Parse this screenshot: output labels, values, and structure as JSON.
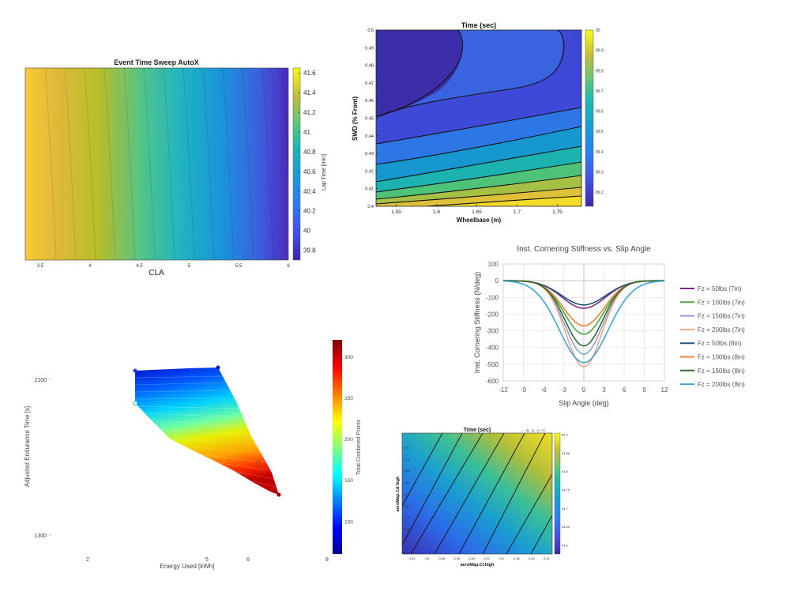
{
  "chart_data": [
    {
      "type": "heatmap",
      "title": "Event Time Sweep AutoX",
      "xlabel": "CLA",
      "ylabel": "",
      "colorbar_label": "Lap Time [min]",
      "x_ticks": [
        "3.5",
        "4",
        "4.5",
        "5",
        "5.5",
        "6"
      ],
      "xlim": [
        3.35,
        6
      ],
      "colorbar_ticks": [
        "39.8",
        "40",
        "40.2",
        "40.4",
        "40.6",
        "40.8",
        "41",
        "41.2",
        "41.4",
        "41.6"
      ],
      "clim": [
        39.7,
        41.65
      ],
      "colormap": "parula",
      "values_at_x": [
        {
          "x": 3.35,
          "value": 41.6
        },
        {
          "x": 3.5,
          "value": 41.45
        },
        {
          "x": 4,
          "value": 41.05
        },
        {
          "x": 4.5,
          "value": 40.7
        },
        {
          "x": 5,
          "value": 40.35
        },
        {
          "x": 5.5,
          "value": 40.05
        },
        {
          "x": 6,
          "value": 39.75
        }
      ]
    },
    {
      "type": "heatmap",
      "title": "Time (sec)",
      "xlabel": "Wheelbase (m)",
      "ylabel": "SWD (% Front)",
      "x_ticks": [
        "1.55",
        "1.6",
        "1.65",
        "1.7",
        "1.75"
      ],
      "xlim": [
        1.525,
        1.78
      ],
      "y_ticks": [
        "0.4",
        "0.41",
        "0.42",
        "0.43",
        "0.44",
        "0.45",
        "0.46",
        "0.47",
        "0.48",
        "0.49",
        "0.5"
      ],
      "ylim": [
        0.4,
        0.5
      ],
      "colorbar_ticks": [
        "89.2",
        "89.3",
        "89.4",
        "89.5",
        "89.6",
        "89.7",
        "89.8",
        "89.9",
        "90"
      ],
      "clim": [
        89.13,
        90.0
      ],
      "colormap": "parula"
    },
    {
      "type": "line",
      "title": "Inst. Cornering Stiffness vs. Slip Angle",
      "xlabel": "Slip Angle (deg)",
      "ylabel": "Inst. Cornering Stiffness (N/deg)",
      "x_ticks": [
        "-12",
        "-9",
        "-6",
        "-3",
        "0",
        "3",
        "6",
        "9",
        "12"
      ],
      "xlim": [
        -12,
        12
      ],
      "y_ticks": [
        "100",
        "0",
        "-100",
        "-200",
        "-300",
        "-400",
        "-500",
        "-600"
      ],
      "ylim": [
        -600,
        100
      ],
      "grid": true,
      "legend_position": "right",
      "series": [
        {
          "name": "Fz = 50lbs (7in)",
          "color": "#7b2a8c",
          "peak": -165,
          "width": 3.2
        },
        {
          "name": "Fz = 100lbs (7in)",
          "color": "#4aa83f",
          "peak": -320,
          "width": 2.9
        },
        {
          "name": "Fz = 150lbs (7in)",
          "color": "#8ea6cf",
          "peak": -440,
          "width": 2.8
        },
        {
          "name": "Fz = 200lbs (7in)",
          "color": "#f4a582",
          "peak": -515,
          "width": 2.7
        },
        {
          "name": "Fz = 50lbs (8in)",
          "color": "#24527a",
          "peak": -145,
          "width": 3.3
        },
        {
          "name": "Fz = 100lbs (8in)",
          "color": "#f08030",
          "peak": -270,
          "width": 3.0
        },
        {
          "name": "Fz = 150lbs (8in)",
          "color": "#2e6b2e",
          "peak": -390,
          "width": 2.8
        },
        {
          "name": "Fz = 200lbs (8in)",
          "color": "#3aa6d6",
          "peak": -490,
          "width": 3.6
        }
      ]
    },
    {
      "type": "scatter",
      "title": "",
      "xlabel": "Energy Used [kWh]",
      "ylabel": "Adjusted Endurance Time [s]",
      "colorbar_label": "Total Combined Points",
      "x_ticks": [
        "2",
        "5",
        "6",
        "8"
      ],
      "y_ticks": [
        "2100",
        "1300"
      ],
      "colorbar_ticks": [
        "100",
        "150",
        "200",
        "250",
        "300"
      ],
      "clim": [
        60,
        320
      ],
      "colormap": "jet"
    },
    {
      "type": "heatmap",
      "title": "Time (sec)",
      "xlabel": "aeroMap.Cl.high",
      "ylabel": "aeroMap.Cd.high",
      "x_ticks": [
        "-3.62",
        "-3.6",
        "-3.58",
        "-3.56",
        "-3.54",
        "-3.52",
        "-3.5",
        "-3.48",
        "-3.46",
        "-3.44"
      ],
      "y_ticks": [
        "1.14",
        "1.16",
        "1.18",
        "1.2",
        "1.22",
        "1.24",
        "1.26",
        "1.28",
        "1.3",
        "1.32"
      ],
      "colorbar_ticks": [
        "54.6",
        "54.65",
        "54.7",
        "54.75",
        "54.8",
        "54.85",
        "54.9"
      ],
      "colormap": "parula"
    }
  ]
}
